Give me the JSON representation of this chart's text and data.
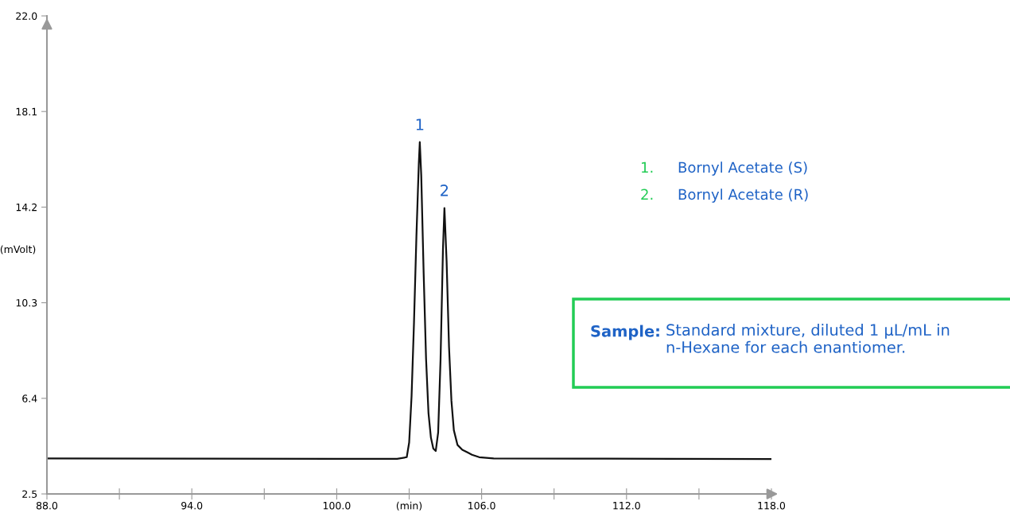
{
  "chart_data": {
    "type": "line",
    "x": [
      88,
      94,
      100,
      102.5,
      102.9,
      103.0,
      103.1,
      103.2,
      103.3,
      103.4,
      103.44,
      103.5,
      103.6,
      103.7,
      103.8,
      103.9,
      104.0,
      104.1,
      104.2,
      104.3,
      104.4,
      104.46,
      104.55,
      104.65,
      104.75,
      104.85,
      105.0,
      105.2,
      105.4,
      105.6,
      105.9,
      106.5,
      110,
      114,
      118
    ],
    "series": [
      {
        "color": "#111111",
        "values": [
          3.95,
          3.94,
          3.93,
          3.93,
          4.0,
          4.6,
          6.5,
          9.5,
          13.0,
          16.0,
          16.85,
          15.5,
          11.5,
          8.0,
          5.8,
          4.8,
          4.35,
          4.25,
          5.0,
          8.0,
          12.5,
          14.16,
          12.0,
          8.5,
          6.3,
          5.1,
          4.5,
          4.3,
          4.2,
          4.1,
          4.0,
          3.95,
          3.94,
          3.93,
          3.92
        ]
      }
    ],
    "ylabel": "(mVolt)",
    "xlim": [
      88,
      118
    ],
    "ylim": [
      2.5,
      22.0
    ],
    "xticks": [
      {
        "value": 88,
        "label": "88.0"
      },
      {
        "value": 91,
        "label": null
      },
      {
        "value": 94,
        "label": "94.0"
      },
      {
        "value": 97,
        "label": null
      },
      {
        "value": 100,
        "label": "100.0"
      },
      {
        "value": 103,
        "label": "(min)"
      },
      {
        "value": 106,
        "label": "106.0"
      },
      {
        "value": 109,
        "label": null
      },
      {
        "value": 112,
        "label": "112.0"
      },
      {
        "value": 115,
        "label": null
      },
      {
        "value": 118,
        "label": "118.0"
      }
    ],
    "yticks": [
      2.5,
      6.4,
      10.3,
      14.2,
      18.1,
      {
        "value": 22.0,
        "label": "22.0"
      }
    ],
    "annotations": [
      {
        "text": "1",
        "x": 103.44,
        "y": 16.85
      },
      {
        "text": "2",
        "x": 104.46,
        "y": 14.16
      },
      "1.",
      "Bornyl Acetate (S)",
      "2.",
      "Bornyl Acetate (R)",
      "Sample:",
      "Standard mixture, diluted 1 µL/mL in n-Hexane for each enantiomer."
    ],
    "grid": false,
    "legend": false,
    "marker": "none",
    "line_style": "solid"
  }
}
